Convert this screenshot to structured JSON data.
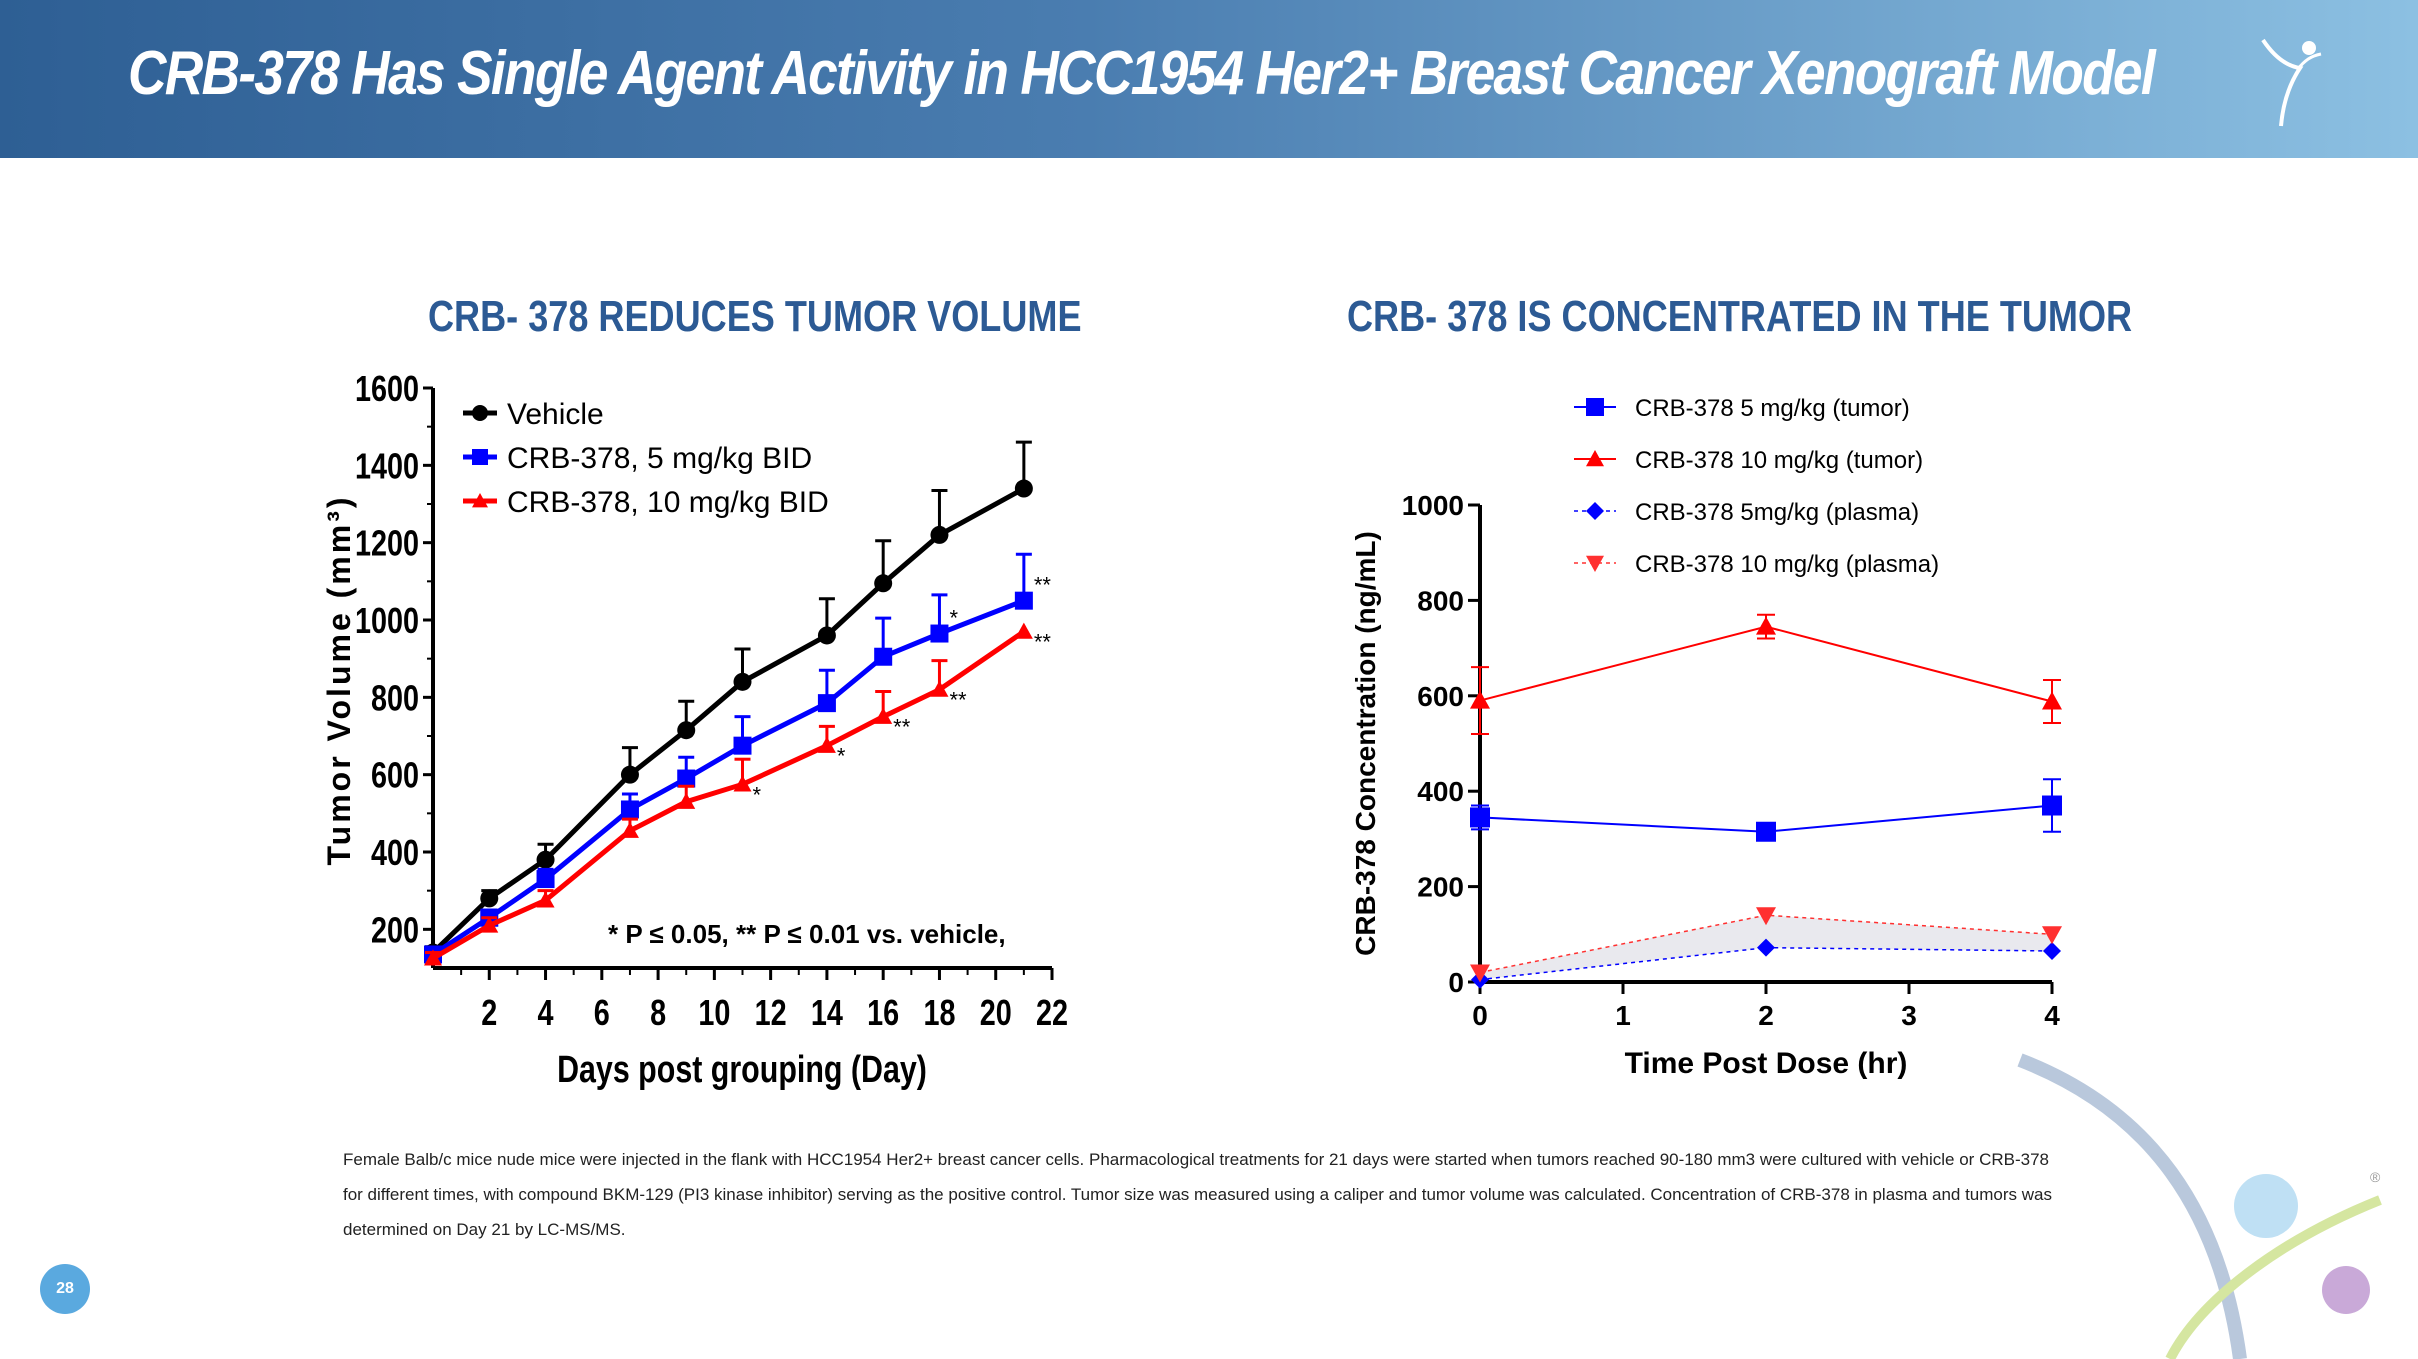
{
  "header": {
    "title": "CRB-378 Has Single Agent Activity in HCC1954 Her2+ Breast Cancer Xenograft Model"
  },
  "colors": {
    "header_start": "#2e5f94",
    "header_end": "#8cc0e2",
    "panel_title": "#2c5a94",
    "vehicle": "#000000",
    "blue": "#0000ff",
    "red": "#ff0000",
    "page_badge": "#5aa9df"
  },
  "panels": {
    "left_title": "CRB- 378 REDUCES TUMOR VOLUME",
    "right_title": "CRB- 378 IS CONCENTRATED IN THE TUMOR"
  },
  "chart_data": [
    {
      "type": "line",
      "title": "",
      "xlabel": "Days post grouping (Day)",
      "ylabel": "Tumor Volume (mm³)",
      "xlim": [
        0,
        22
      ],
      "ylim": [
        100,
        1600
      ],
      "xticks": [
        2,
        4,
        6,
        8,
        10,
        12,
        14,
        16,
        18,
        20,
        22
      ],
      "yticks": [
        200,
        400,
        600,
        800,
        1000,
        1200,
        1400,
        1600
      ],
      "legend_position": "top-left",
      "annotation": "* P ≤ 0.05, ** P ≤ 0.01 vs. vehicle,",
      "series": [
        {
          "name": "Vehicle",
          "color": "#000000",
          "marker": "circle",
          "x": [
            0,
            2,
            4,
            7,
            9,
            11,
            14,
            16,
            18,
            21
          ],
          "y": [
            140,
            280,
            380,
            600,
            715,
            840,
            960,
            1095,
            1220,
            1340
          ],
          "err": [
            15,
            20,
            40,
            70,
            75,
            85,
            95,
            110,
            115,
            120
          ],
          "sig": [
            "",
            "",
            "",
            "",
            "",
            "",
            "",
            "",
            "",
            ""
          ]
        },
        {
          "name": "CRB-378, 5 mg/kg BID",
          "color": "#0000ff",
          "marker": "square",
          "x": [
            0,
            2,
            4,
            7,
            9,
            11,
            14,
            16,
            18,
            21
          ],
          "y": [
            135,
            230,
            330,
            510,
            590,
            675,
            785,
            905,
            965,
            1050
          ],
          "err": [
            15,
            20,
            25,
            40,
            55,
            75,
            85,
            100,
            100,
            120
          ],
          "sig": [
            "",
            "",
            "",
            "",
            "",
            "",
            "",
            "",
            "*",
            "**"
          ]
        },
        {
          "name": "CRB-378, 10 mg/kg BID",
          "color": "#ff0000",
          "marker": "triangle-up",
          "x": [
            0,
            2,
            4,
            7,
            9,
            11,
            14,
            16,
            18,
            21
          ],
          "y": [
            125,
            210,
            275,
            455,
            530,
            575,
            675,
            750,
            820,
            970
          ],
          "err": [
            15,
            20,
            25,
            30,
            40,
            65,
            50,
            65,
            75,
            0
          ],
          "sig": [
            "",
            "",
            "",
            "",
            "",
            "*",
            "*",
            "**",
            "**",
            "**"
          ]
        }
      ]
    },
    {
      "type": "line",
      "title": "",
      "xlabel": "Time Post Dose (hr)",
      "ylabel": "CRB-378 Concentration (ng/mL)",
      "xlim": [
        0,
        4
      ],
      "ylim": [
        0,
        1000
      ],
      "xticks": [
        0,
        1,
        2,
        3,
        4
      ],
      "yticks": [
        0,
        200,
        400,
        600,
        800,
        1000
      ],
      "legend_position": "top-center",
      "series": [
        {
          "name": "CRB-378 5 mg/kg (tumor)",
          "color": "#0000ff",
          "marker": "square",
          "dash": false,
          "x": [
            0,
            2,
            4
          ],
          "y": [
            345,
            315,
            370
          ],
          "err": [
            25,
            0,
            55
          ]
        },
        {
          "name": "CRB-378 10 mg/kg (tumor)",
          "color": "#ff0000",
          "marker": "triangle-up",
          "dash": false,
          "x": [
            0,
            2,
            4
          ],
          "y": [
            590,
            745,
            588
          ],
          "err": [
            70,
            25,
            45
          ]
        },
        {
          "name": "CRB-378 5mg/kg (plasma)",
          "color": "#0000ff",
          "marker": "diamond",
          "dash": true,
          "x": [
            0,
            2,
            4
          ],
          "y": [
            5,
            72,
            65
          ],
          "err": [
            0,
            0,
            0
          ]
        },
        {
          "name": "CRB-378 10 mg/kg (plasma)",
          "color": "#ff3030",
          "marker": "triangle-down",
          "dash": true,
          "x": [
            0,
            2,
            4
          ],
          "y": [
            20,
            140,
            100
          ],
          "err": [
            0,
            0,
            0
          ]
        }
      ]
    }
  ],
  "footnote": "Female Balb/c mice nude mice were injected in the flank with HCC1954 Her2+ breast cancer cells. Pharmacological treatments for 21 days were started when tumors reached 90-180 mm3 were cultured with vehicle or CRB-378 for different times, with compound BKM-129 (PI3 kinase inhibitor) serving as the positive control. Tumor size was measured using a caliper and tumor volume was calculated. Concentration of CRB-378 in plasma and tumors was determined on Day 21 by LC-MS/MS.",
  "page_number": "28",
  "registered_mark": "®"
}
